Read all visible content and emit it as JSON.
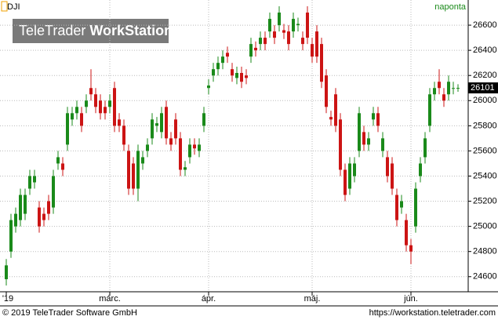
{
  "chart_data": {
    "type": "candlestick",
    "symbol": "DJI",
    "interval": "naponta",
    "watermark": [
      "TeleTrader",
      "WorkStation"
    ],
    "copyright": "© 2019 TeleTrader Software GmbH",
    "url": "https://workstation.teletrader.com",
    "up_color": "#1a8a1a",
    "down_color": "#cc1414",
    "grid": true,
    "ylim": [
      24480,
      26800
    ],
    "yticks": [
      24600,
      24800,
      25000,
      25200,
      25400,
      25600,
      25800,
      26000,
      26200,
      26400,
      26600
    ],
    "xticks": [
      {
        "value": 0,
        "label": "'19"
      },
      {
        "value": 22,
        "label": "márc."
      },
      {
        "value": 43,
        "label": "ápr."
      },
      {
        "value": 65,
        "label": "máj."
      },
      {
        "value": 86,
        "label": "jún."
      }
    ],
    "last": 26101,
    "open": [
      24580,
      24800,
      25000,
      25050,
      25100,
      25300,
      25350,
      25150,
      25100,
      25200,
      25150,
      25500,
      25500,
      25650,
      25850,
      25900,
      25900,
      25950,
      26100,
      26050,
      26000,
      25950,
      25950,
      26100,
      25850,
      25800,
      25600,
      25500,
      25300,
      25500,
      25600,
      25700,
      25800,
      25750,
      25950,
      25700,
      25850,
      25700,
      25450,
      25550,
      25650,
      25600,
      25800,
      26100,
      26200,
      26250,
      26300,
      26380,
      26250,
      26180,
      26220,
      26200,
      26350,
      26420,
      26450,
      26500,
      26550,
      26550,
      26600,
      26560,
      26550,
      26550,
      26600,
      26500,
      26700,
      26450,
      26550,
      26450,
      26200,
      25870,
      26050,
      25850,
      25450,
      25300,
      25400,
      25600,
      25750,
      25650,
      25850,
      25900,
      25600,
      25550,
      25500,
      25250,
      25150,
      25050,
      24850,
      25000,
      25400,
      25550,
      25800,
      26050,
      26150,
      26050,
      26050,
      26100,
      26100
    ],
    "high": [
      24740,
      25100,
      25150,
      25300,
      25300,
      25450,
      25450,
      25200,
      25150,
      25250,
      25450,
      25600,
      25550,
      25950,
      25950,
      26000,
      25950,
      26050,
      26250,
      26100,
      26050,
      26000,
      26050,
      26150,
      25900,
      25850,
      25650,
      25550,
      25650,
      25600,
      25700,
      25900,
      25870,
      25950,
      26000,
      25750,
      25900,
      25750,
      25520,
      25700,
      25700,
      25700,
      25950,
      26170,
      26300,
      26350,
      26400,
      26430,
      26300,
      26270,
      26270,
      26250,
      26500,
      26470,
      26550,
      26550,
      26700,
      26600,
      26750,
      26610,
      26600,
      26700,
      26660,
      26550,
      26750,
      26500,
      26600,
      26500,
      26250,
      25920,
      26100,
      25900,
      25500,
      25550,
      25550,
      25950,
      25800,
      25750,
      25950,
      25950,
      25750,
      25600,
      25550,
      25300,
      25250,
      25100,
      24900,
      25350,
      25550,
      25750,
      26100,
      26150,
      26250,
      26100,
      26200,
      26150,
      26130
    ],
    "low": [
      24530,
      24750,
      24950,
      25000,
      25050,
      25250,
      25300,
      24950,
      25000,
      25050,
      25100,
      25450,
      25400,
      25600,
      25800,
      25850,
      25750,
      25900,
      26000,
      25900,
      25850,
      25850,
      25900,
      25750,
      25750,
      25600,
      25250,
      25250,
      25200,
      25450,
      25550,
      25650,
      25750,
      25700,
      25650,
      25600,
      25650,
      25400,
      25400,
      25500,
      25570,
      25550,
      25750,
      26050,
      26150,
      26200,
      26250,
      26300,
      26150,
      26130,
      26100,
      26130,
      26300,
      26350,
      26400,
      26400,
      26500,
      26450,
      26550,
      26490,
      26400,
      26500,
      26550,
      26400,
      26450,
      26300,
      26300,
      26100,
      25900,
      25800,
      25750,
      25400,
      25200,
      25250,
      25350,
      25550,
      25600,
      25600,
      25800,
      25750,
      25550,
      25350,
      25250,
      25000,
      25100,
      24800,
      24700,
      24950,
      25350,
      25500,
      25750,
      26000,
      26050,
      25950,
      26000,
      26050,
      26070
    ],
    "close": [
      24690,
      25050,
      25100,
      25250,
      25250,
      25400,
      25400,
      25000,
      25050,
      25100,
      25400,
      25550,
      25450,
      25900,
      25900,
      25950,
      25800,
      26000,
      26050,
      25950,
      25900,
      25900,
      26000,
      25800,
      25800,
      25650,
      25300,
      25300,
      25600,
      25550,
      25650,
      25850,
      25820,
      25900,
      25700,
      25650,
      25700,
      25450,
      25470,
      25650,
      25620,
      25650,
      25900,
      26120,
      26250,
      26300,
      26350,
      26350,
      26200,
      26220,
      26150,
      26180,
      26450,
      26400,
      26500,
      26450,
      26650,
      26500,
      26700,
      26540,
      26450,
      26650,
      26610,
      26450,
      26500,
      26350,
      26350,
      26150,
      25950,
      25850,
      25800,
      25450,
      25250,
      25500,
      25500,
      25900,
      25650,
      25700,
      25900,
      25800,
      25700,
      25400,
      25300,
      25050,
      25200,
      24850,
      24800,
      25300,
      25500,
      25700,
      26050,
      26100,
      26100,
      26000,
      26150,
      26100,
      26101
    ]
  }
}
